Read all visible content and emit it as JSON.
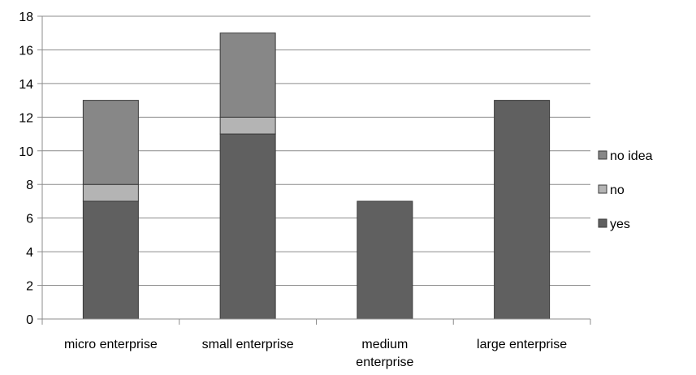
{
  "chart_data": {
    "type": "bar",
    "stacked": true,
    "categories": [
      "micro enterprise",
      "small enterprise",
      "medium enterprise",
      "large enterprise"
    ],
    "category_label_lines": [
      [
        "micro enterprise"
      ],
      [
        "small enterprise"
      ],
      [
        "medium",
        "enterprise"
      ],
      [
        "large enterprise"
      ]
    ],
    "series": [
      {
        "name": "yes",
        "values": [
          7,
          11,
          7,
          13
        ],
        "color": "#606060"
      },
      {
        "name": "no",
        "values": [
          1,
          1,
          0,
          0
        ],
        "color": "#b4b4b4"
      },
      {
        "name": "no idea",
        "values": [
          5,
          5,
          0,
          0
        ],
        "color": "#878787"
      }
    ],
    "title": "",
    "xlabel": "",
    "ylabel": "",
    "ylim": [
      0,
      18
    ],
    "yticks": [
      0,
      2,
      4,
      6,
      8,
      10,
      12,
      14,
      16,
      18
    ],
    "grid": true,
    "legend_position": "right",
    "legend_order": [
      "no idea",
      "no",
      "yes"
    ]
  }
}
